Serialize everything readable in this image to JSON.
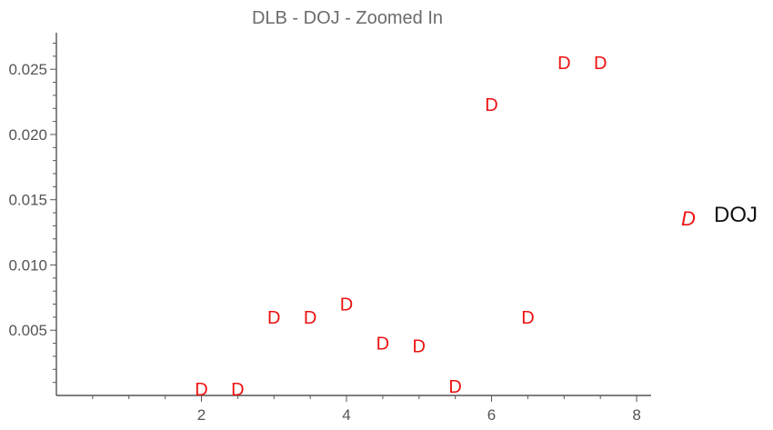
{
  "chart_data": {
    "type": "scatter",
    "title": "DLB - DOJ - Zoomed In",
    "xlabel": "",
    "ylabel": "",
    "xlim": [
      0.0,
      8.2
    ],
    "ylim": [
      0.0,
      0.0278
    ],
    "x_ticks": [
      2,
      4,
      6,
      8
    ],
    "y_ticks": [
      0.005,
      0.01,
      0.015,
      0.02,
      0.025
    ],
    "x_tick_labels": [
      "2",
      "4",
      "6",
      "8"
    ],
    "y_tick_labels": [
      "0.005",
      "0.010",
      "0.015",
      "0.020",
      "0.025"
    ],
    "grid": false,
    "legend_position": "right",
    "series": [
      {
        "name": "DOJ",
        "marker": "D",
        "color": "#ee1111",
        "points": [
          {
            "x": 2.0,
            "y": 0.0005
          },
          {
            "x": 2.5,
            "y": 0.0005
          },
          {
            "x": 3.0,
            "y": 0.006
          },
          {
            "x": 3.5,
            "y": 0.006
          },
          {
            "x": 4.0,
            "y": 0.007
          },
          {
            "x": 4.5,
            "y": 0.004
          },
          {
            "x": 5.0,
            "y": 0.0038
          },
          {
            "x": 5.5,
            "y": 0.0007
          },
          {
            "x": 6.0,
            "y": 0.0223
          },
          {
            "x": 6.5,
            "y": 0.006
          },
          {
            "x": 7.0,
            "y": 0.0255
          },
          {
            "x": 7.5,
            "y": 0.0255
          }
        ]
      }
    ]
  }
}
